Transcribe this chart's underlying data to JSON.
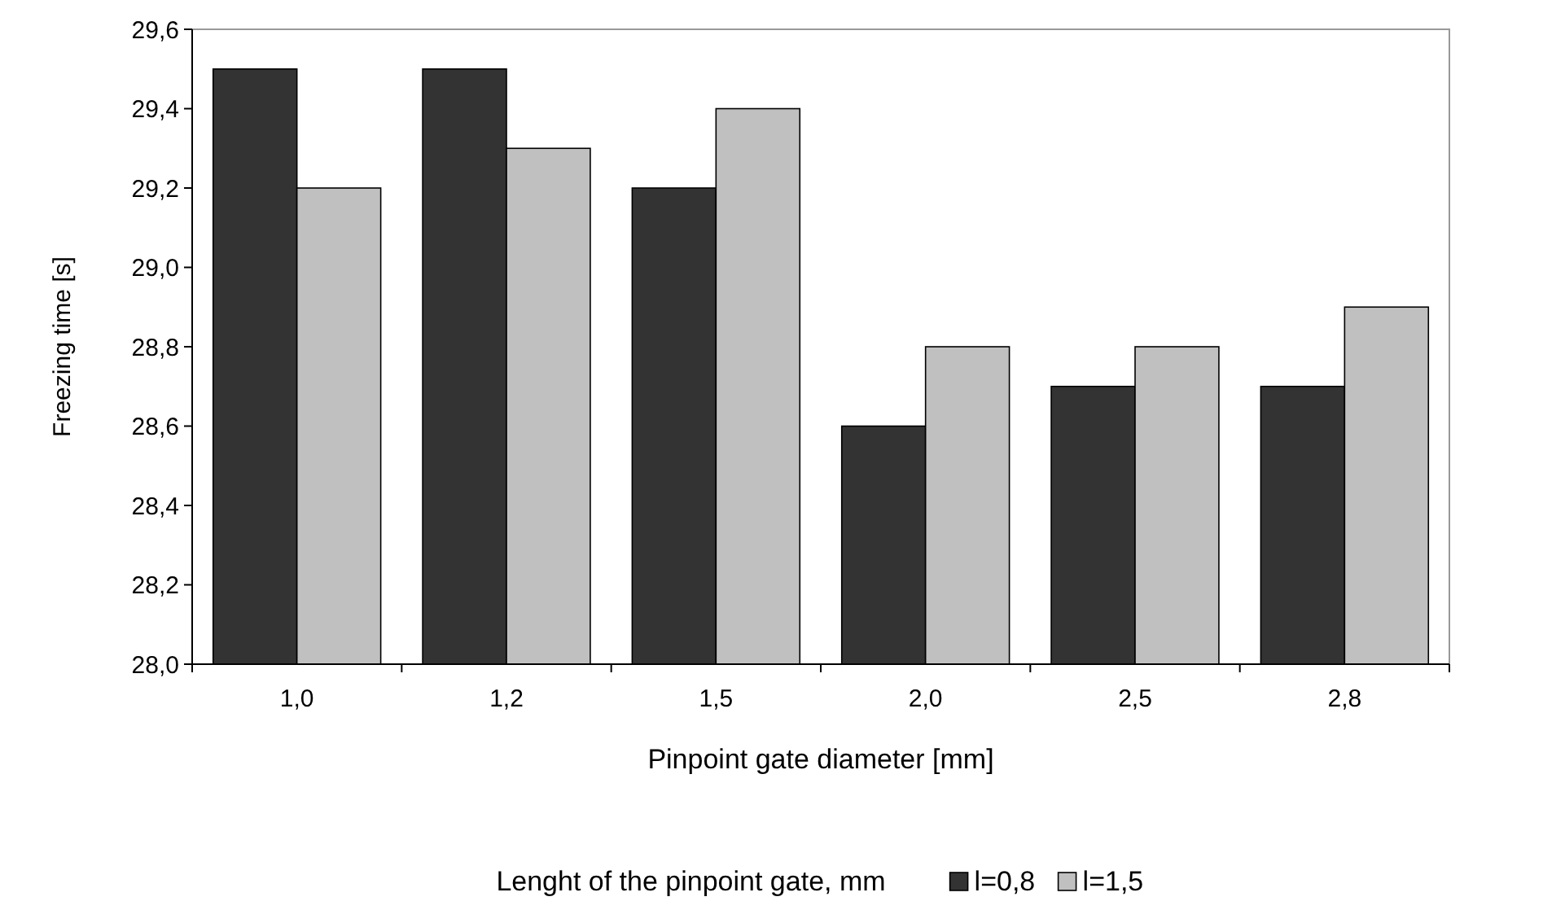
{
  "chart_data": {
    "type": "bar",
    "xlabel": "Pinpoint gate diameter [mm]",
    "ylabel": "Freezing time [s]",
    "legend_title": "Lenght of the pinpoint gate, mm",
    "categories": [
      "1,0",
      "1,2",
      "1,5",
      "2,0",
      "2,5",
      "2,8"
    ],
    "series": [
      {
        "name": "l=0,8",
        "color": "#333333",
        "values": [
          29.5,
          29.5,
          29.2,
          28.6,
          28.7,
          28.7
        ]
      },
      {
        "name": "l=1,5",
        "color": "#c0c0c0",
        "values": [
          29.2,
          29.3,
          29.4,
          28.8,
          28.8,
          28.9
        ]
      }
    ],
    "ylim": [
      28.0,
      29.6
    ],
    "yticks": [
      {
        "value": 28.0,
        "label": "28,0"
      },
      {
        "value": 28.2,
        "label": "28,2"
      },
      {
        "value": 28.4,
        "label": "28,4"
      },
      {
        "value": 28.6,
        "label": "28,6"
      },
      {
        "value": 28.8,
        "label": "28,8"
      },
      {
        "value": 29.0,
        "label": "29,0"
      },
      {
        "value": 29.2,
        "label": "29,2"
      },
      {
        "value": 29.4,
        "label": "29,4"
      },
      {
        "value": 29.6,
        "label": "29,6"
      }
    ],
    "grid": false,
    "legend": "bottom"
  }
}
